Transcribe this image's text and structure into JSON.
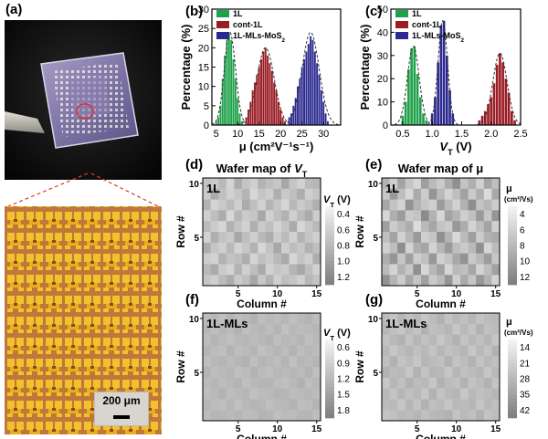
{
  "panels": {
    "a": "(a)",
    "b": "(b)",
    "c": "(c)",
    "d": "(d)",
    "e": "(e)",
    "f": "(f)",
    "g": "(g)"
  },
  "photo": {
    "scale_bar_label": "200 μm"
  },
  "colors": {
    "green": "#1fa04a",
    "red": "#9a1c24",
    "blue": "#2c2a8f",
    "fit": "#333333"
  },
  "chart_data": [
    {
      "id": "b",
      "type": "bar",
      "title": "",
      "xlabel": "μ (cm²V⁻¹s⁻¹)",
      "ylabel": "Percentage (%)",
      "xlim": [
        4,
        34
      ],
      "ylim": [
        0,
        30
      ],
      "xticks": [
        5,
        10,
        15,
        20,
        25,
        30
      ],
      "yticks": [
        0,
        5,
        10,
        15,
        20,
        25,
        30
      ],
      "legend": [
        "1L",
        "cont-1L",
        "1L-MLs-MoS2"
      ],
      "series": [
        {
          "name": "1L",
          "color": "green",
          "bin_width": 0.5,
          "x": [
            5.5,
            6,
            6.5,
            7,
            7.5,
            8,
            8.5,
            9,
            9.5,
            10,
            10.5,
            11
          ],
          "values": [
            2,
            5,
            12,
            18,
            22,
            24,
            22,
            17,
            12,
            7,
            3,
            1
          ],
          "fit": {
            "mu": 8.2,
            "sigma": 1.3,
            "peak": 24
          }
        },
        {
          "name": "cont-1L",
          "color": "red",
          "bin_width": 0.5,
          "x": [
            12,
            12.5,
            13,
            13.5,
            14,
            14.5,
            15,
            15.5,
            16,
            16.5,
            17,
            17.5,
            18,
            18.5,
            19,
            19.5,
            20,
            20.5,
            21
          ],
          "values": [
            2,
            4,
            6,
            9,
            11,
            13,
            15,
            17,
            19,
            20,
            18,
            16,
            14,
            11,
            9,
            6,
            4,
            2,
            1
          ],
          "fit": {
            "mu": 16.5,
            "sigma": 2.0,
            "peak": 20
          }
        },
        {
          "name": "1L-MLs-MoS2",
          "color": "blue",
          "bin_width": 0.5,
          "x": [
            22,
            22.5,
            23,
            23.5,
            24,
            24.5,
            25,
            25.5,
            26,
            26.5,
            27,
            27.5,
            28,
            28.5,
            29,
            29.5,
            30,
            30.5,
            31
          ],
          "values": [
            2,
            3,
            5,
            7,
            10,
            12,
            15,
            17,
            19,
            21,
            23,
            22,
            19,
            16,
            13,
            9,
            6,
            3,
            1
          ],
          "fit": {
            "mu": 27,
            "sigma": 2.0,
            "peak": 24
          }
        }
      ]
    },
    {
      "id": "c",
      "type": "bar",
      "title": "",
      "xlabel": "V_T (V)",
      "ylabel": "Percentage (%)",
      "xlim": [
        0.3,
        2.5
      ],
      "ylim": [
        0,
        50
      ],
      "xticks": [
        0.5,
        1.0,
        1.5,
        2.0,
        2.5
      ],
      "xtick_labels": [
        "0.5",
        "1.0",
        "1.5",
        "2.0",
        "2.5"
      ],
      "yticks": [
        0,
        10,
        20,
        30,
        40,
        50
      ],
      "legend": [
        "1L",
        "cont-1L",
        "1L-MLs-MoS2"
      ],
      "series": [
        {
          "name": "1L",
          "color": "green",
          "bin_width": 0.05,
          "x": [
            0.5,
            0.55,
            0.6,
            0.65,
            0.7,
            0.75,
            0.8,
            0.85,
            0.9
          ],
          "values": [
            4,
            10,
            24,
            33,
            34,
            22,
            12,
            5,
            2
          ],
          "fit": {
            "mu": 0.68,
            "sigma": 0.1,
            "peak": 34
          }
        },
        {
          "name": "cont-1L",
          "color": "red",
          "bin_width": 0.05,
          "x": [
            1.8,
            1.85,
            1.9,
            1.95,
            2.0,
            2.05,
            2.1,
            2.15,
            2.2,
            2.25,
            2.3,
            2.35,
            2.4
          ],
          "values": [
            2,
            4,
            6,
            9,
            12,
            18,
            26,
            31,
            27,
            20,
            14,
            6,
            2
          ],
          "fit": {
            "mu": 2.15,
            "sigma": 0.12,
            "peak": 31
          }
        },
        {
          "name": "1L-MLs-MoS2",
          "color": "blue",
          "bin_width": 0.05,
          "x": [
            1.0,
            1.05,
            1.1,
            1.15,
            1.2,
            1.25,
            1.3,
            1.35
          ],
          "values": [
            5,
            12,
            27,
            43,
            45,
            30,
            15,
            5
          ],
          "fit": {
            "mu": 1.18,
            "sigma": 0.08,
            "peak": 45
          }
        }
      ]
    },
    {
      "id": "d",
      "type": "heatmap",
      "title": "Wafer map of V_T",
      "inset_label": "1L",
      "xlabel": "Column #",
      "ylabel": "Row #",
      "x_ticks": [
        5,
        10,
        15
      ],
      "y_ticks": [
        5,
        10
      ],
      "colorbar_title": "V_T (V)",
      "colorbar_ticks": [
        "0.4",
        "0.6",
        "0.8",
        "1.0",
        "1.2"
      ],
      "range": [
        0.3,
        1.3
      ],
      "values": [
        [
          0.72,
          0.65,
          0.8,
          0.58,
          0.9,
          0.7,
          0.62,
          0.85,
          0.76,
          0.68,
          0.95,
          0.7,
          0.6,
          0.78,
          0.82
        ],
        [
          0.66,
          0.92,
          0.74,
          0.6,
          0.7,
          0.84,
          0.55,
          0.71,
          0.63,
          0.88,
          0.67,
          0.75,
          0.9,
          0.62,
          0.7
        ],
        [
          0.85,
          0.58,
          0.67,
          0.78,
          0.62,
          0.92,
          0.74,
          0.6,
          0.83,
          0.7,
          0.57,
          0.81,
          0.66,
          0.74,
          0.88
        ],
        [
          0.62,
          0.76,
          0.9,
          0.55,
          0.82,
          0.66,
          0.7,
          0.95,
          0.6,
          0.74,
          0.86,
          0.62,
          0.78,
          0.92,
          0.64
        ],
        [
          0.78,
          0.64,
          0.56,
          0.86,
          0.7,
          0.6,
          0.88,
          0.66,
          0.74,
          0.58,
          0.7,
          0.92,
          0.55,
          0.68,
          0.8
        ],
        [
          0.58,
          0.88,
          0.72,
          0.66,
          0.94,
          0.76,
          0.62,
          0.8,
          0.9,
          0.64,
          0.78,
          0.6,
          0.84,
          0.7,
          0.62
        ],
        [
          0.9,
          0.7,
          0.62,
          0.8,
          0.58,
          0.68,
          0.86,
          0.55,
          0.72,
          0.94,
          0.62,
          0.76,
          0.68,
          0.86,
          0.74
        ],
        [
          0.64,
          0.6,
          0.86,
          0.72,
          0.76,
          0.9,
          0.58,
          0.74,
          0.66,
          0.8,
          0.92,
          0.56,
          0.72,
          0.62,
          0.9
        ],
        [
          0.8,
          0.92,
          0.66,
          0.58,
          0.84,
          0.62,
          0.76,
          0.92,
          0.6,
          0.7,
          0.66,
          0.84,
          0.94,
          0.76,
          0.6
        ],
        [
          0.7,
          0.62,
          0.78,
          0.9,
          0.66,
          0.74,
          0.95,
          0.68,
          0.86,
          0.62,
          0.76,
          0.7,
          0.6,
          0.82,
          0.72
        ]
      ]
    },
    {
      "id": "e",
      "type": "heatmap",
      "title": "Wafer map of μ",
      "inset_label": "1L",
      "xlabel": "Column #",
      "ylabel": "Row #",
      "x_ticks": [
        5,
        10,
        15
      ],
      "y_ticks": [
        5,
        10
      ],
      "colorbar_title": "μ",
      "colorbar_units": "(cm²/Vs)",
      "colorbar_ticks": [
        "4",
        "6",
        "8",
        "10",
        "12"
      ],
      "range": [
        3,
        13
      ],
      "values": [
        [
          8.4,
          6.2,
          9.8,
          7.0,
          5.6,
          10.2,
          7.8,
          6.6,
          9.0,
          11.4,
          7.2,
          8.8,
          6.0,
          9.6,
          7.4
        ],
        [
          6.8,
          10.6,
          7.6,
          5.4,
          9.2,
          6.4,
          11.0,
          8.0,
          5.8,
          7.6,
          10.0,
          6.6,
          8.8,
          5.2,
          9.4
        ],
        [
          9.6,
          7.2,
          5.8,
          11.2,
          8.4,
          7.0,
          6.2,
          10.4,
          7.8,
          6.0,
          8.6,
          11.6,
          7.2,
          8.2,
          6.4
        ],
        [
          5.6,
          8.8,
          10.4,
          6.6,
          7.2,
          11.8,
          8.6,
          5.6,
          9.8,
          8.4,
          6.2,
          7.4,
          10.6,
          6.8,
          11.0
        ],
        [
          10.2,
          6.4,
          7.8,
          9.0,
          5.2,
          8.0,
          9.6,
          7.2,
          6.6,
          10.8,
          9.0,
          5.8,
          7.6,
          9.8,
          6.0
        ],
        [
          7.4,
          9.8,
          6.0,
          8.2,
          10.6,
          6.2,
          7.0,
          11.4,
          8.4,
          5.4,
          7.8,
          10.2,
          6.4,
          8.6,
          9.2
        ],
        [
          6.0,
          7.6,
          11.6,
          5.8,
          8.8,
          9.6,
          5.8,
          8.2,
          10.6,
          7.6,
          6.6,
          8.0,
          11.4,
          5.6,
          7.8
        ],
        [
          9.0,
          11.0,
          7.0,
          10.2,
          6.4,
          7.4,
          10.8,
          6.0,
          7.2,
          9.4,
          11.2,
          6.6,
          8.0,
          10.4,
          6.8
        ],
        [
          7.8,
          5.8,
          8.6,
          6.8,
          11.4,
          5.6,
          8.2,
          9.8,
          5.6,
          8.0,
          7.4,
          9.6,
          5.8,
          7.6,
          10.0
        ],
        [
          11.2,
          8.4,
          6.4,
          9.4,
          7.0,
          10.0,
          6.6,
          7.8,
          11.0,
          6.2,
          9.2,
          7.0,
          10.8,
          8.6,
          5.8
        ]
      ]
    },
    {
      "id": "f",
      "type": "heatmap",
      "title": "",
      "inset_label": "1L-MLs",
      "xlabel": "Column #",
      "ylabel": "Row #",
      "x_ticks": [
        5,
        10,
        15
      ],
      "y_ticks": [
        5,
        10
      ],
      "colorbar_title": "V_T (V)",
      "colorbar_ticks": [
        "0.6",
        "0.9",
        "1.2",
        "1.5",
        "1.8"
      ],
      "range": [
        0.5,
        1.9
      ],
      "values": [
        [
          1.18,
          1.22,
          1.12,
          1.25,
          1.16,
          1.2,
          1.28,
          1.14,
          1.21,
          1.17,
          1.24,
          1.13,
          1.2,
          1.26,
          1.15
        ],
        [
          1.22,
          1.14,
          1.24,
          1.18,
          1.27,
          1.13,
          1.19,
          1.23,
          1.16,
          1.25,
          1.12,
          1.21,
          1.17,
          1.19,
          1.23
        ],
        [
          1.15,
          1.26,
          1.19,
          1.13,
          1.21,
          1.24,
          1.16,
          1.2,
          1.27,
          1.14,
          1.22,
          1.18,
          1.25,
          1.13,
          1.2
        ],
        [
          1.24,
          1.18,
          1.13,
          1.27,
          1.15,
          1.19,
          1.23,
          1.12,
          1.18,
          1.24,
          1.16,
          1.27,
          1.14,
          1.22,
          1.17
        ],
        [
          1.13,
          1.21,
          1.25,
          1.16,
          1.22,
          1.28,
          1.14,
          1.25,
          1.21,
          1.15,
          1.26,
          1.12,
          1.23,
          1.18,
          1.25
        ],
        [
          1.26,
          1.15,
          1.2,
          1.23,
          1.13,
          1.17,
          1.27,
          1.18,
          1.14,
          1.22,
          1.19,
          1.24,
          1.16,
          1.27,
          1.12
        ],
        [
          1.19,
          1.24,
          1.16,
          1.21,
          1.26,
          1.14,
          1.2,
          1.23,
          1.25,
          1.17,
          1.13,
          1.2,
          1.28,
          1.15,
          1.21
        ],
        [
          1.14,
          1.2,
          1.27,
          1.15,
          1.19,
          1.23,
          1.12,
          1.16,
          1.2,
          1.26,
          1.24,
          1.15,
          1.19,
          1.22,
          1.16
        ],
        [
          1.23,
          1.17,
          1.14,
          1.24,
          1.12,
          1.2,
          1.25,
          1.22,
          1.13,
          1.19,
          1.21,
          1.27,
          1.14,
          1.18,
          1.26
        ],
        [
          1.17,
          1.25,
          1.22,
          1.19,
          1.24,
          1.16,
          1.18,
          1.27,
          1.22,
          1.13,
          1.18,
          1.16,
          1.23,
          1.25,
          1.14
        ]
      ]
    },
    {
      "id": "g",
      "type": "heatmap",
      "title": "",
      "inset_label": "1L-MLs",
      "xlabel": "Column #",
      "ylabel": "Row #",
      "x_ticks": [
        5,
        10,
        15
      ],
      "y_ticks": [
        5,
        10
      ],
      "colorbar_title": "μ",
      "colorbar_units": "(cm²/Vs)",
      "colorbar_ticks": [
        "14",
        "21",
        "28",
        "35",
        "42"
      ],
      "range": [
        10,
        46
      ],
      "values": [
        [
          27,
          25,
          29,
          26,
          28,
          24,
          27,
          30,
          25,
          28,
          26,
          29,
          25,
          27,
          28
        ],
        [
          29,
          26,
          24,
          28,
          25,
          30,
          26,
          27,
          29,
          24,
          28,
          25,
          30,
          26,
          27
        ],
        [
          25,
          28,
          30,
          25,
          29,
          26,
          28,
          24,
          27,
          30,
          25,
          28,
          26,
          29,
          24
        ],
        [
          28,
          24,
          27,
          29,
          26,
          28,
          25,
          29,
          26,
          27,
          29,
          24,
          28,
          25,
          30
        ],
        [
          26,
          30,
          25,
          27,
          24,
          29,
          27,
          26,
          30,
          25,
          27,
          30,
          25,
          28,
          26
        ],
        [
          30,
          27,
          28,
          24,
          30,
          25,
          29,
          28,
          24,
          29,
          26,
          27,
          29,
          24,
          28
        ],
        [
          24,
          29,
          26,
          30,
          27,
          28,
          24,
          30,
          27,
          26,
          30,
          25,
          27,
          30,
          25
        ],
        [
          28,
          25,
          29,
          26,
          28,
          24,
          30,
          25,
          28,
          29,
          24,
          28,
          26,
          27,
          29
        ],
        [
          27,
          28,
          24,
          29,
          25,
          30,
          26,
          27,
          24,
          28,
          27,
          29,
          24,
          28,
          26
        ],
        [
          25,
          26,
          28,
          27,
          29,
          26,
          28,
          29,
          30,
          25,
          28,
          26,
          30,
          25,
          27
        ]
      ]
    }
  ]
}
